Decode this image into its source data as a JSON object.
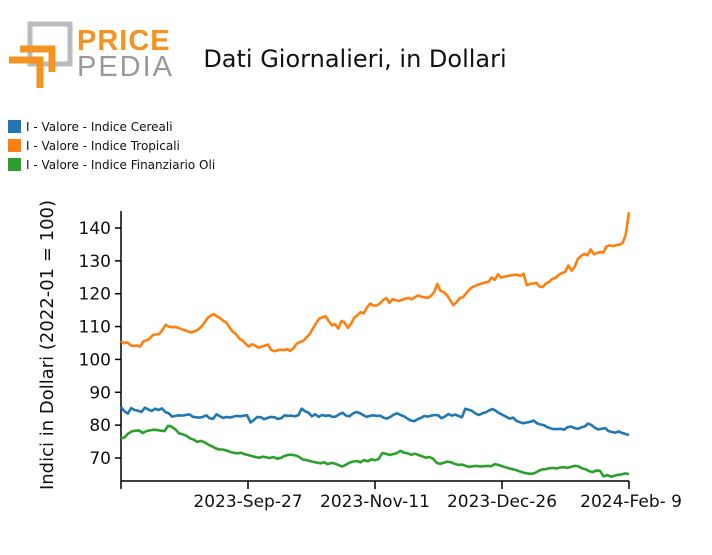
{
  "logo": {
    "line1": "PRICE",
    "line2": "PEDIA",
    "colors": {
      "orange": "#f39420",
      "gray": "#aaaaaa"
    }
  },
  "chart_data": {
    "type": "line",
    "title": "Dati Giornalieri, in Dollari",
    "xlabel": "",
    "ylabel": "Indici in Dollari (2022-01 = 100)",
    "x_ticks": [
      "2023-Sep-27",
      "2023-Nov-11",
      "2023-Dec-26",
      "2024-Feb- 9"
    ],
    "x_range": [
      "2023-Aug-13",
      "2024-Feb-09"
    ],
    "y_ticks": [
      70,
      80,
      90,
      100,
      110,
      120,
      130,
      140
    ],
    "ylim": [
      63,
      147
    ],
    "legend_position": "top-left",
    "grid": false,
    "series": [
      {
        "name": "I - Valore - Indice Cereali",
        "color": "#1f77b4",
        "values": [
          85.5,
          84.2,
          83.5,
          85.2,
          84.6,
          84.4,
          84.0,
          85.3,
          84.8,
          84.3,
          85.0,
          84.6,
          85.1,
          84.0,
          83.6,
          82.6,
          82.8,
          83.0,
          82.9,
          83.1,
          83.3,
          82.6,
          82.4,
          82.3,
          82.5,
          83.0,
          82.1,
          81.9,
          83.3,
          82.7,
          82.2,
          82.5,
          82.3,
          82.6,
          82.8,
          82.7,
          82.9,
          83.0,
          80.8,
          81.6,
          82.5,
          82.4,
          81.8,
          82.2,
          82.5,
          82.4,
          81.9,
          82.1,
          83.0,
          82.8,
          82.9,
          82.7,
          83.0,
          85.0,
          84.2,
          83.8,
          82.7,
          83.3,
          82.5,
          83.1,
          82.8,
          83.0,
          82.5,
          82.6,
          83.3,
          83.8,
          82.9,
          82.7,
          83.5,
          84.0,
          83.7,
          83.1,
          82.5,
          82.8,
          83.0,
          82.8,
          82.9,
          82.3,
          82.0,
          82.5,
          83.2,
          83.6,
          83.1,
          82.7,
          82.0,
          81.4,
          81.2,
          81.8,
          82.2,
          82.8,
          82.6,
          82.9,
          83.1,
          83.0,
          82.1,
          82.6,
          83.4,
          82.9,
          83.2,
          82.8,
          82.4,
          85.0,
          84.7,
          84.3,
          83.5,
          83.1,
          83.6,
          83.9,
          84.5,
          84.9,
          84.3,
          83.6,
          83.1,
          82.5,
          82.0,
          82.3,
          81.3,
          80.9,
          80.6,
          80.8,
          81.0,
          81.4,
          80.6,
          80.2,
          80.0,
          79.4,
          79.0,
          78.8,
          78.8,
          78.9,
          78.6,
          79.4,
          79.6,
          79.1,
          78.9,
          79.3,
          79.6,
          80.5,
          80.0,
          79.2,
          78.7,
          78.9,
          79.1,
          78.2,
          77.9,
          77.7,
          78.1,
          77.6,
          77.3,
          77.0
        ]
      },
      {
        "name": "I - Valore - Indice Tropicali",
        "color": "#ff7f0e",
        "values": [
          105.6,
          104.9,
          105.2,
          104.3,
          104.1,
          104.2,
          103.9,
          105.5,
          105.8,
          106.4,
          107.4,
          107.6,
          107.7,
          109.0,
          110.5,
          110.0,
          109.8,
          109.9,
          109.6,
          109.2,
          108.9,
          108.5,
          108.2,
          108.6,
          109.0,
          109.8,
          111.0,
          112.5,
          113.3,
          113.8,
          113.2,
          112.6,
          111.8,
          111.2,
          109.7,
          108.4,
          107.7,
          106.4,
          105.8,
          104.8,
          103.9,
          104.6,
          104.2,
          103.6,
          103.9,
          104.2,
          104.5,
          102.9,
          102.5,
          102.8,
          103.0,
          102.8,
          103.1,
          102.6,
          103.4,
          104.8,
          105.3,
          105.6,
          106.6,
          107.6,
          109.3,
          110.9,
          112.4,
          112.8,
          113.2,
          111.7,
          110.4,
          110.7,
          109.4,
          111.7,
          111.2,
          109.6,
          110.8,
          112.7,
          113.4,
          114.4,
          114.0,
          115.8,
          117.0,
          116.4,
          116.4,
          117.0,
          118.0,
          118.7,
          117.2,
          118.3,
          118.0,
          117.8,
          118.1,
          118.5,
          118.7,
          118.3,
          118.9,
          119.5,
          119.1,
          118.9,
          118.7,
          119.3,
          120.4,
          123.0,
          120.9,
          120.5,
          119.6,
          118.1,
          116.5,
          117.4,
          118.6,
          118.9,
          120.1,
          121.2,
          122.0,
          122.4,
          122.8,
          123.1,
          123.4,
          123.6,
          124.9,
          124.2,
          125.9,
          124.9,
          125.2,
          125.4,
          125.6,
          125.7,
          125.8,
          125.4,
          126.1,
          122.6,
          123.0,
          123.1,
          123.3,
          122.2,
          122.0,
          123.1,
          123.6,
          124.5,
          124.8,
          125.7,
          126.3,
          126.6,
          128.6,
          127.0,
          128.2,
          130.6,
          131.5,
          132.1,
          131.7,
          133.5,
          132.0,
          132.4,
          132.7,
          132.5,
          134.4,
          134.7,
          134.5,
          134.8,
          134.9,
          135.4,
          138.0,
          144.8
        ]
      },
      {
        "name": "I - Valore - Indice Finanziario Oli",
        "color": "#2ca02c",
        "values": [
          75.9,
          76.3,
          77.5,
          78.1,
          78.3,
          78.4,
          77.6,
          78.2,
          78.4,
          78.6,
          78.5,
          78.3,
          78.2,
          79.8,
          79.5,
          78.7,
          77.5,
          77.2,
          76.8,
          76.0,
          75.6,
          74.9,
          75.2,
          74.8,
          74.1,
          73.6,
          73.0,
          72.6,
          72.6,
          72.3,
          71.9,
          71.6,
          71.4,
          71.6,
          71.2,
          70.9,
          70.6,
          70.3,
          70.1,
          70.4,
          70.2,
          70.0,
          70.3,
          69.8,
          70.0,
          70.6,
          70.9,
          71.0,
          70.8,
          70.4,
          69.6,
          69.4,
          69.1,
          68.8,
          68.6,
          68.4,
          68.7,
          68.1,
          68.5,
          68.3,
          67.8,
          67.4,
          68.0,
          68.6,
          68.9,
          69.1,
          68.7,
          69.4,
          69.0,
          69.6,
          69.3,
          69.7,
          71.5,
          71.3,
          70.9,
          71.2,
          71.5,
          72.2,
          71.6,
          71.4,
          71.0,
          71.3,
          70.9,
          70.5,
          70.1,
          70.3,
          69.8,
          68.5,
          68.2,
          68.6,
          68.9,
          68.7,
          68.2,
          67.9,
          68.0,
          67.6,
          67.3,
          67.5,
          67.6,
          67.4,
          67.5,
          67.6,
          67.5,
          68.1,
          67.9,
          67.5,
          67.2,
          66.8,
          66.6,
          66.3,
          65.9,
          65.5,
          65.3,
          65.2,
          65.4,
          66.0,
          66.5,
          66.6,
          66.9,
          67.0,
          66.8,
          67.1,
          67.2,
          67.0,
          67.3,
          67.6,
          67.5,
          66.9,
          66.6,
          66.0,
          65.7,
          66.2,
          66.1,
          64.4,
          64.8,
          64.3,
          64.6,
          64.9,
          65.0,
          65.3,
          65.1
        ]
      }
    ]
  }
}
